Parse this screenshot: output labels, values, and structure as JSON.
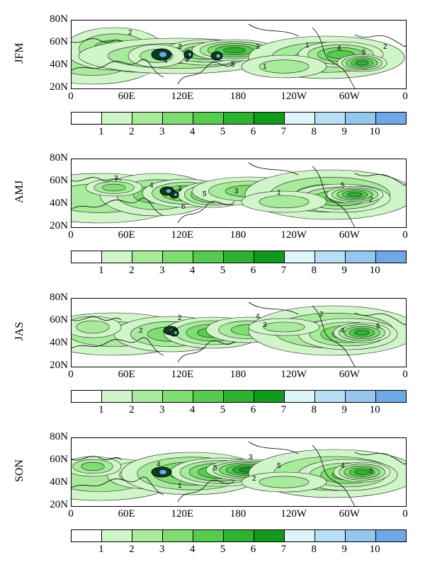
{
  "lat_labels": [
    "80N",
    "60N",
    "40N",
    "20N"
  ],
  "lon_labels": [
    "0",
    "60E",
    "120E",
    "180",
    "120W",
    "60W",
    "0"
  ],
  "colorbar": {
    "colors": [
      "#ffffff",
      "#d0f5c8",
      "#a8eb9c",
      "#7fdd72",
      "#55cc4f",
      "#2fb232",
      "#129a1e",
      "#dff4f8",
      "#b8dff4",
      "#95c6ee",
      "#6fa8e6"
    ],
    "ticks": [
      "1",
      "2",
      "3",
      "4",
      "5",
      "6",
      "7",
      "8",
      "9",
      "10"
    ]
  },
  "panels": [
    {
      "season": "JFM"
    },
    {
      "season": "AMJ"
    },
    {
      "season": "JAS"
    },
    {
      "season": "SON"
    }
  ],
  "contour_label_color": "#000000",
  "land_outline_color": "#000000"
}
